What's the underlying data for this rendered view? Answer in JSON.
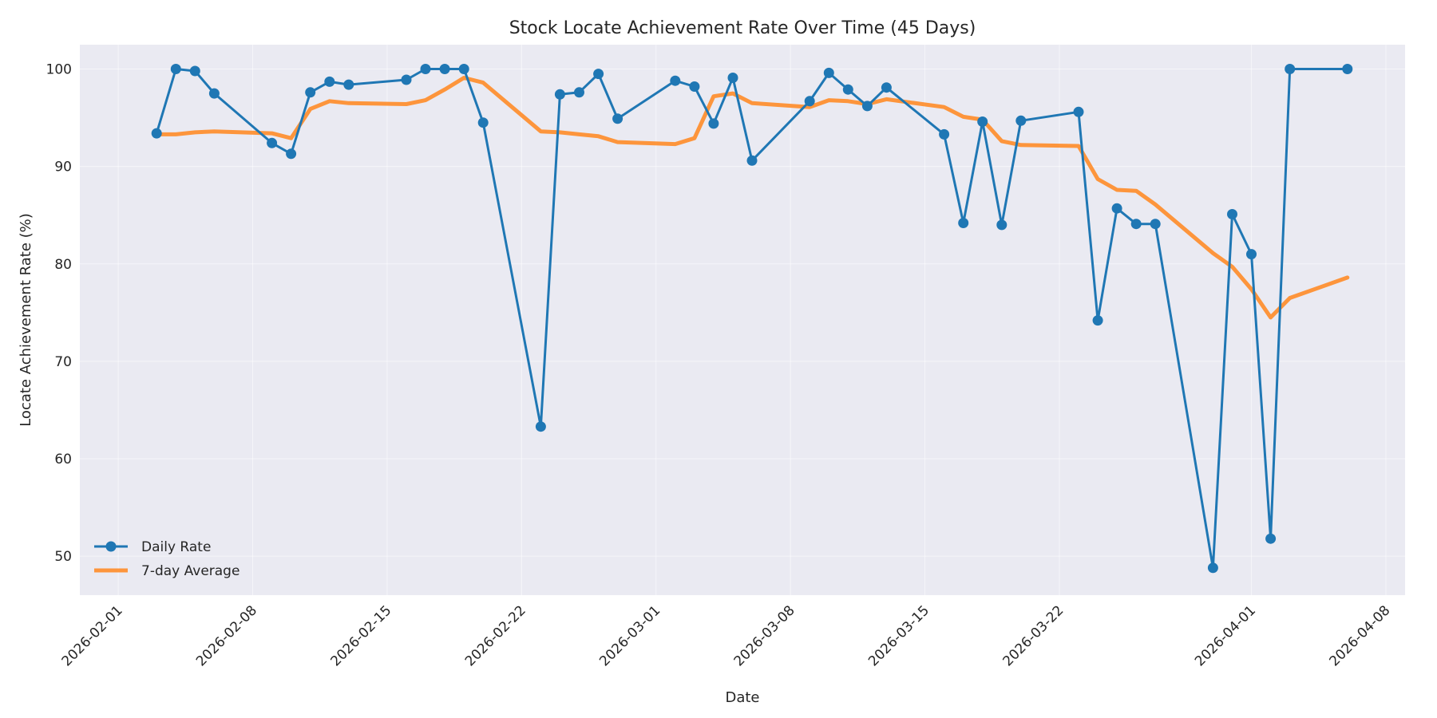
{
  "chart_data": {
    "type": "line",
    "title": "Stock Locate Achievement Rate Over Time (45 Days)",
    "xlabel": "Date",
    "ylabel": "Locate Achievement Rate (%)",
    "xlim": [
      "2026-01-30",
      "2026-04-09"
    ],
    "ylim": [
      46,
      102.5
    ],
    "x_ticks": [
      "2026-02-01",
      "2026-02-08",
      "2026-02-15",
      "2026-02-22",
      "2026-03-01",
      "2026-03-08",
      "2026-03-15",
      "2026-03-22",
      "2026-04-01",
      "2026-04-08"
    ],
    "y_ticks": [
      50,
      60,
      70,
      80,
      90,
      100
    ],
    "grid": true,
    "legend_position": "lower-left",
    "colors": {
      "plot_background": "#eaeaf2",
      "daily": "#1f77b4",
      "average": "#ff8c28"
    },
    "x": [
      "2026-02-03",
      "2026-02-04",
      "2026-02-05",
      "2026-02-06",
      "2026-02-09",
      "2026-02-10",
      "2026-02-11",
      "2026-02-12",
      "2026-02-13",
      "2026-02-16",
      "2026-02-17",
      "2026-02-18",
      "2026-02-19",
      "2026-02-20",
      "2026-02-23",
      "2026-02-24",
      "2026-02-25",
      "2026-02-26",
      "2026-02-27",
      "2026-03-02",
      "2026-03-03",
      "2026-03-04",
      "2026-03-05",
      "2026-03-06",
      "2026-03-09",
      "2026-03-10",
      "2026-03-11",
      "2026-03-12",
      "2026-03-13",
      "2026-03-16",
      "2026-03-17",
      "2026-03-18",
      "2026-03-19",
      "2026-03-20",
      "2026-03-23",
      "2026-03-24",
      "2026-03-25",
      "2026-03-26",
      "2026-03-27",
      "2026-03-30",
      "2026-03-31",
      "2026-04-01",
      "2026-04-02",
      "2026-04-03",
      "2026-04-06"
    ],
    "series": [
      {
        "name": "Daily Rate",
        "style": "line-with-markers",
        "values": [
          93.4,
          100.0,
          99.8,
          97.5,
          92.4,
          91.3,
          97.6,
          98.7,
          98.4,
          98.9,
          100.0,
          100.0,
          100.0,
          94.5,
          63.3,
          97.4,
          97.6,
          99.5,
          94.9,
          98.8,
          98.2,
          94.4,
          99.1,
          90.6,
          96.7,
          99.6,
          97.9,
          96.2,
          98.1,
          93.3,
          84.2,
          94.6,
          84.0,
          94.7,
          95.6,
          74.2,
          85.7,
          84.1,
          84.1,
          48.8,
          85.1,
          81.0,
          51.8,
          100.0,
          100.0
        ]
      },
      {
        "name": "7-day Average",
        "style": "line",
        "values": [
          93.3,
          93.3,
          93.5,
          93.6,
          93.4,
          92.9,
          95.9,
          96.7,
          96.5,
          96.4,
          96.8,
          97.9,
          99.1,
          98.6,
          93.6,
          93.5,
          93.3,
          93.1,
          92.5,
          92.3,
          92.9,
          97.2,
          97.5,
          96.5,
          96.1,
          96.8,
          96.7,
          96.4,
          96.9,
          96.1,
          95.1,
          94.8,
          92.6,
          92.2,
          92.1,
          88.7,
          87.6,
          87.5,
          86.1,
          81.1,
          79.7,
          77.4,
          74.5,
          76.5,
          78.6
        ]
      }
    ]
  }
}
